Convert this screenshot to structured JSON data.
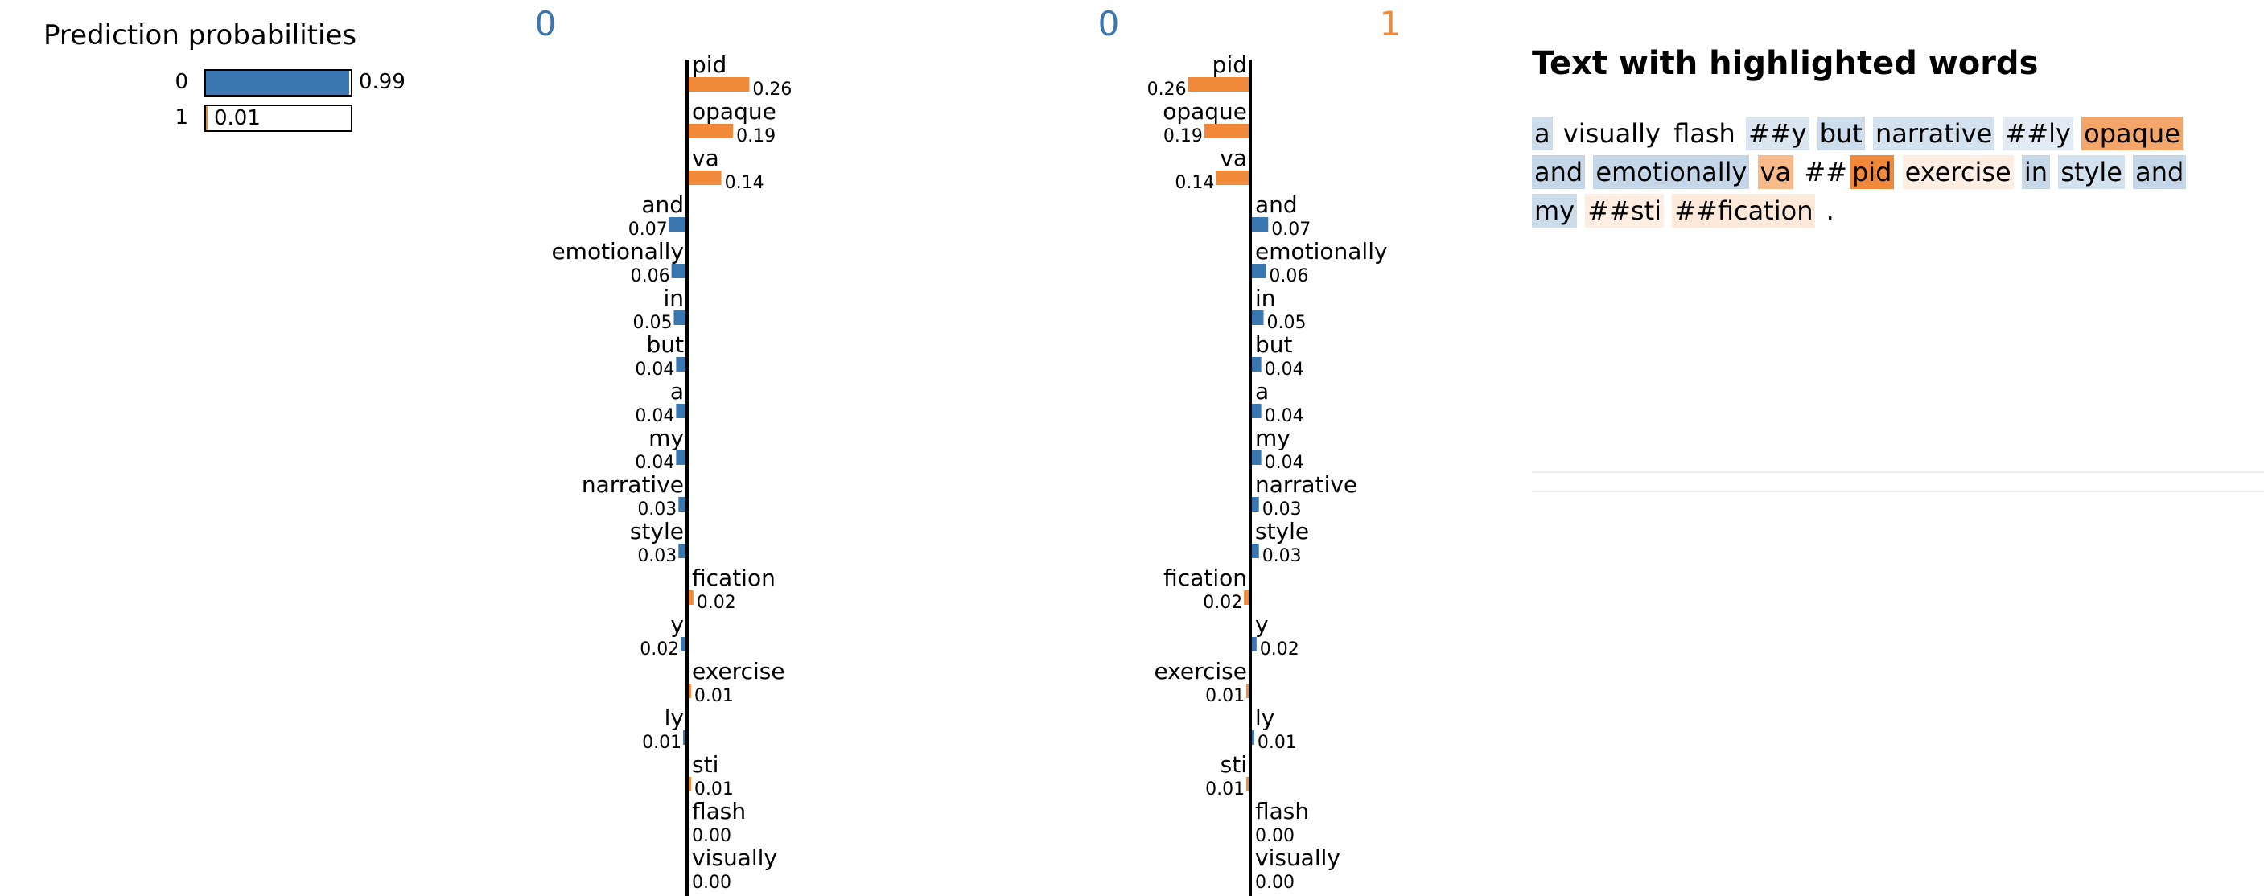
{
  "prediction_probabilities": {
    "title": "Prediction probabilities",
    "rows": [
      {
        "label": "0",
        "value": 0.99,
        "value_text": "0.99",
        "color": "#3a76b0"
      },
      {
        "label": "1",
        "value": 0.01,
        "value_text": "0.01",
        "color": "#f0893a"
      }
    ]
  },
  "colors": {
    "class0": "#3a76b0",
    "class1": "#f0893a"
  },
  "chart_data": [
    {
      "type": "bar",
      "orientation": "horizontal",
      "class_labels": [
        "0",
        "1"
      ],
      "positive_class": "1",
      "words": [
        "pid",
        "opaque",
        "va",
        "and",
        "emotionally",
        "in",
        "but",
        "a",
        "my",
        "narrative",
        "style",
        "fication",
        "y",
        "exercise",
        "ly",
        "sti",
        "flash",
        "visually"
      ],
      "values": [
        0.26,
        0.19,
        0.14,
        -0.07,
        -0.06,
        -0.05,
        -0.04,
        -0.04,
        -0.04,
        -0.03,
        -0.03,
        0.02,
        -0.02,
        0.01,
        -0.01,
        0.01,
        0.0,
        0.0
      ],
      "value_labels": [
        "0.26",
        "0.19",
        "0.14",
        "0.07",
        "0.06",
        "0.05",
        "0.04",
        "0.04",
        "0.04",
        "0.03",
        "0.03",
        "0.02",
        "0.02",
        "0.01",
        "0.01",
        "0.01",
        "0.00",
        "0.00"
      ]
    },
    {
      "type": "bar",
      "orientation": "horizontal",
      "class_labels": [
        "0",
        "1"
      ],
      "positive_class": "0",
      "words": [
        "pid",
        "opaque",
        "va",
        "and",
        "emotionally",
        "in",
        "but",
        "a",
        "my",
        "narrative",
        "style",
        "fication",
        "y",
        "exercise",
        "ly",
        "sti",
        "flash",
        "visually"
      ],
      "values": [
        -0.26,
        -0.19,
        -0.14,
        0.07,
        0.06,
        0.05,
        0.04,
        0.04,
        0.04,
        0.03,
        0.03,
        -0.02,
        0.02,
        -0.01,
        0.01,
        -0.01,
        0.0,
        0.0
      ],
      "value_labels": [
        "0.26",
        "0.19",
        "0.14",
        "0.07",
        "0.06",
        "0.05",
        "0.04",
        "0.04",
        "0.04",
        "0.03",
        "0.03",
        "0.02",
        "0.02",
        "0.01",
        "0.01",
        "0.01",
        "0.00",
        "0.00"
      ]
    }
  ],
  "highlighted_text": {
    "title": "Text with highlighted words",
    "tokens": [
      {
        "text": "a",
        "weight": -0.04
      },
      {
        "text": "visually",
        "weight": 0
      },
      {
        "text": "flash",
        "weight": 0
      },
      {
        "text": "##y",
        "weight": -0.02
      },
      {
        "text": "but",
        "weight": -0.04
      },
      {
        "text": "narrative",
        "weight": -0.03
      },
      {
        "text": "##ly",
        "weight": -0.01
      },
      {
        "text": "opaque",
        "weight": 0.19
      },
      {
        "text": "and",
        "weight": -0.07
      },
      {
        "text": "emotionally",
        "weight": -0.06
      },
      {
        "text": "va",
        "weight": 0.14
      },
      {
        "text": "##",
        "weight": 0,
        "join_next": true
      },
      {
        "text": "pid",
        "weight": 0.26
      },
      {
        "text": "exercise",
        "weight": 0.01
      },
      {
        "text": "in",
        "weight": -0.05
      },
      {
        "text": "style",
        "weight": -0.03
      },
      {
        "text": "and",
        "weight": -0.07
      },
      {
        "text": "my",
        "weight": -0.04
      },
      {
        "text": "##sti",
        "weight": 0.01
      },
      {
        "text": "##fication",
        "weight": 0.02
      },
      {
        "text": ".",
        "weight": 0
      }
    ]
  }
}
